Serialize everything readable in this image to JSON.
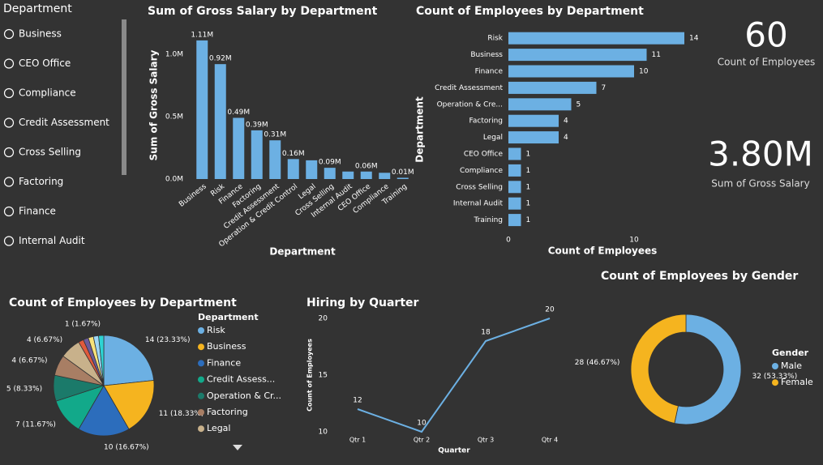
{
  "slicer": {
    "title": "Department",
    "items": [
      "Business",
      "CEO Office",
      "Compliance",
      "Credit Assessment",
      "Cross Selling",
      "Factoring",
      "Finance",
      "Internal Audit"
    ]
  },
  "kpis": [
    {
      "value": "60",
      "label": "Count of Employees"
    },
    {
      "value": "3.80M",
      "label": "Sum of Gross Salary"
    }
  ],
  "chart_data": [
    {
      "type": "bar",
      "title": "Sum of Gross Salary by Department",
      "x_label": "Department",
      "y_label": "Sum of Gross Salary",
      "categories": [
        "Business",
        "Risk",
        "Finance",
        "Factoring",
        "Credit Assessment",
        "Operation & Credit Control",
        "Legal",
        "Cross Selling",
        "Internal Audit",
        "CEO Office",
        "Compliance",
        "Training"
      ],
      "values": [
        1.11,
        0.92,
        0.49,
        0.39,
        0.31,
        0.16,
        0.15,
        0.09,
        0.06,
        0.06,
        0.05,
        0.01
      ],
      "value_labels": [
        "1.11M",
        "0.92M",
        "0.49M",
        "0.39M",
        "0.31M",
        "0.16M",
        null,
        "0.09M",
        null,
        "0.06M",
        null,
        "0.01M"
      ],
      "color": "#6cb0e3",
      "ylim": [
        0,
        1.2
      ],
      "yticks": [
        {
          "value": 0,
          "label": "0.0M"
        },
        {
          "value": 0.5,
          "label": "0.5M"
        },
        {
          "value": 1,
          "label": "1.0M"
        }
      ]
    },
    {
      "type": "barh",
      "title": "Count of Employees by Department",
      "x_label": "Count of Employees",
      "y_label": "Department",
      "categories": [
        "Risk",
        "Business",
        "Finance",
        "Credit Assessment",
        "Operation & Cre...",
        "Factoring",
        "Legal",
        "CEO Office",
        "Compliance",
        "Cross Selling",
        "Internal Audit",
        "Training"
      ],
      "values": [
        14,
        11,
        10,
        7,
        5,
        4,
        4,
        1,
        1,
        1,
        1,
        1
      ],
      "color": "#6cb0e3",
      "xlim": [
        0,
        14
      ],
      "xticks": [
        0,
        10
      ]
    },
    {
      "type": "pie",
      "title": "Count of Employees by Department",
      "legend_title": "Department",
      "categories": [
        "Risk",
        "Business",
        "Finance",
        "Credit Assess...",
        "Operation & Cr...",
        "Factoring",
        "Legal",
        null,
        null,
        null,
        null,
        null
      ],
      "values": [
        14,
        11,
        10,
        7,
        5,
        4,
        4,
        1,
        1,
        1,
        1,
        1
      ],
      "value_labels": [
        "14 (23.33%)",
        "11 (18.33%)",
        "10 (16.67%)",
        "7 (11.67%)",
        "5 (8.33%)",
        "4 (6.67%)",
        "4 (6.67%)",
        null,
        null,
        null,
        null,
        "1 (1.67%)"
      ],
      "colors": [
        "#6cb0e3",
        "#f5b41f",
        "#2c6dbc",
        "#12a98a",
        "#1b7a6a",
        "#a87e64",
        "#c8b18b",
        "#e05a3c",
        "#6b5b9a",
        "#f7e27a",
        "#9fd7f7",
        "#2dd4d4"
      ]
    },
    {
      "type": "line",
      "title": "Hiring by Quarter",
      "x_label": "Quarter",
      "y_label": "Count of Employees",
      "categories": [
        "Qtr 1",
        "Qtr 2",
        "Qtr 3",
        "Qtr 4"
      ],
      "values": [
        12,
        10,
        18,
        20
      ],
      "color": "#6cb0e3",
      "ylim": [
        10,
        20
      ],
      "yticks": [
        10,
        15,
        20
      ]
    },
    {
      "type": "donut",
      "title": "Count of Employees by Gender",
      "legend_title": "Gender",
      "categories": [
        "Male",
        "Female"
      ],
      "values": [
        32,
        28
      ],
      "value_labels": [
        "32 (53.33%)",
        "28 (46.67%)"
      ],
      "colors": [
        "#6cb0e3",
        "#f5b41f"
      ]
    }
  ]
}
